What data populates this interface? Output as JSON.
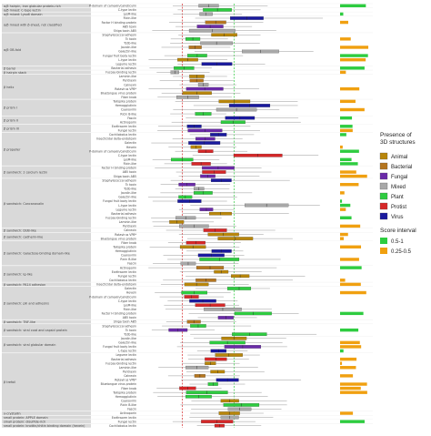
{
  "chart_data": {
    "type": "box",
    "title": "",
    "xlabel": "",
    "ylabel": "",
    "legend": {
      "placement": "right",
      "presence_title": "Presence of\n3D structures",
      "presence_items": [
        {
          "label": "Animal",
          "color": "#b8860b"
        },
        {
          "label": "Bacterial",
          "color": "#b5761f"
        },
        {
          "label": "Fungal",
          "color": "#6a2aa8"
        },
        {
          "label": "Mixed",
          "color": "#a8a8a8"
        },
        {
          "label": "Plant",
          "color": "#2ecc40"
        },
        {
          "label": "Protist",
          "color": "#d62728"
        },
        {
          "label": "Virus",
          "color": "#1a1a9e"
        }
      ],
      "score_title": "Score interval",
      "score_items": [
        {
          "label": "0.5-1",
          "color": "#2ecc40"
        },
        {
          "label": "0.25-0.5",
          "color": "#f0a010"
        }
      ]
    },
    "reference_lines": [
      {
        "color": "#d62728",
        "style": "dashed",
        "x": 0.22
      },
      {
        "color": "#2ecc40",
        "style": "dashed",
        "x": 0.48
      }
    ],
    "xlim": [
      0,
      1
    ],
    "folds": [
      {
        "label": "α/β hairpin, iron globular protein-rich",
        "rows": 1
      },
      {
        "label": "α/β mixed: C-type lectin",
        "rows": 1
      },
      {
        "label": "α/β mixed: Lyso6 domain",
        "rows": 1
      },
      {
        "label": "α/β mixed with β-sheet, not classified",
        "rows": 4
      },
      {
        "label": "α/β OB-fold",
        "rows": 8
      },
      {
        "label": "β barrel",
        "rows": 1
      },
      {
        "label": "β hairpin stack",
        "rows": 1
      },
      {
        "label": "β helix",
        "rows": 6
      },
      {
        "label": "β prism I",
        "rows": 4
      },
      {
        "label": "β prism II",
        "rows": 2
      },
      {
        "label": "β prism III",
        "rows": 2
      },
      {
        "label": "β propeller",
        "rows": 8
      },
      {
        "label": "β sandwich: 2 calcium lectin",
        "rows": 3
      },
      {
        "label": "β sandwich: Concanavalin",
        "rows": 12
      },
      {
        "label": "β sandwich: DUB-like",
        "rows": 1
      },
      {
        "label": "β sandwich: cadherin-like",
        "rows": 2
      },
      {
        "label": "β sandwich: Galactose-binding domain-like",
        "rows": 6
      },
      {
        "label": "β sandwich: Ig-like",
        "rows": 4
      },
      {
        "label": "β sandwich: PA14 adhesion",
        "rows": 1
      },
      {
        "label": "β sandwich: pili and adhesins",
        "rows": 8
      },
      {
        "label": "β sandwich: TNF-like",
        "rows": 1
      },
      {
        "label": "β sandwich: viral coat and capsid protein",
        "rows": 3
      },
      {
        "label": "β sandwich: viral globular domain",
        "rows": 4
      },
      {
        "label": "β trefoil",
        "rows": 14
      },
      {
        "label": "γ-crystallin",
        "rows": 1
      },
      {
        "label": "small protein: APPLE domain",
        "rows": 1
      },
      {
        "label": "small protein: disulfide-rich",
        "rows": 1
      },
      {
        "label": "small protein: knottin/chitin binding domain (hevein)",
        "rows": 1
      }
    ],
    "legible_row_labels": [
      "P-domain of calnexin/calreticulin",
      "C-type lectin",
      "LysM-like",
      "Ricin-like",
      "Factor H binding protein",
      "AB5 toxin",
      "Shiga toxin AB5",
      "Staphylococcal adhesin",
      "Tc toxin",
      "Tcdb-like",
      "Jacalin-like",
      "Galectin-like",
      "Fungal fruit body lectin",
      "L-type lectin",
      "Legume lectin",
      "Bacterial adhesin",
      "Fucose-binding lectin",
      "Laminin-like",
      "Pentraxin",
      "Calnexin",
      "Rotavirus VP8*",
      "Bluetongue virus protein",
      "Fiber knob",
      "Tailspike protein",
      "Hemagglutinin",
      "Cyanovirin",
      "Ricin B-like",
      "Fascin",
      "Actinoporin",
      "Earthworm lectin",
      "Fungal lectin",
      "Cochliobolus lectin",
      "Insecticidal delta-endotoxin",
      "Galectin",
      "Hevein"
    ],
    "rows_note": "Horizontal box plots of score per family, colored by presence of 3D structures; right-hand bars show score interval counts."
  }
}
